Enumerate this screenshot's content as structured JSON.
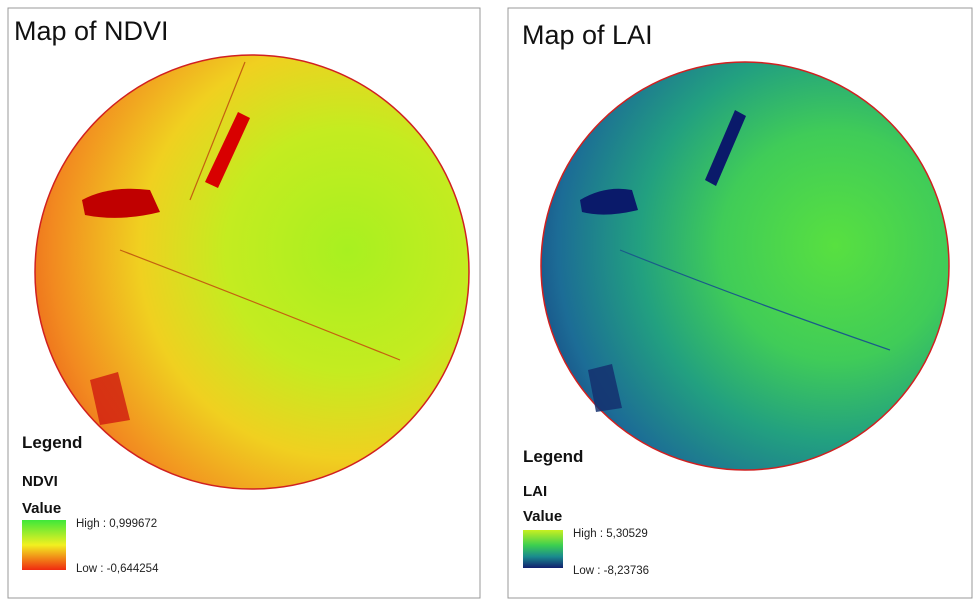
{
  "panels": [
    {
      "title": "Map of NDVI",
      "legend": {
        "heading": "Legend",
        "layer": "NDVI",
        "field": "Value",
        "high": "High : 0,999672",
        "low": "Low : -0,644254"
      }
    },
    {
      "title": "Map of LAI",
      "legend": {
        "heading": "Legend",
        "layer": "LAI",
        "field": "Value",
        "high": "High : 5,30529",
        "low": "Low : -8,23736"
      }
    }
  ]
}
